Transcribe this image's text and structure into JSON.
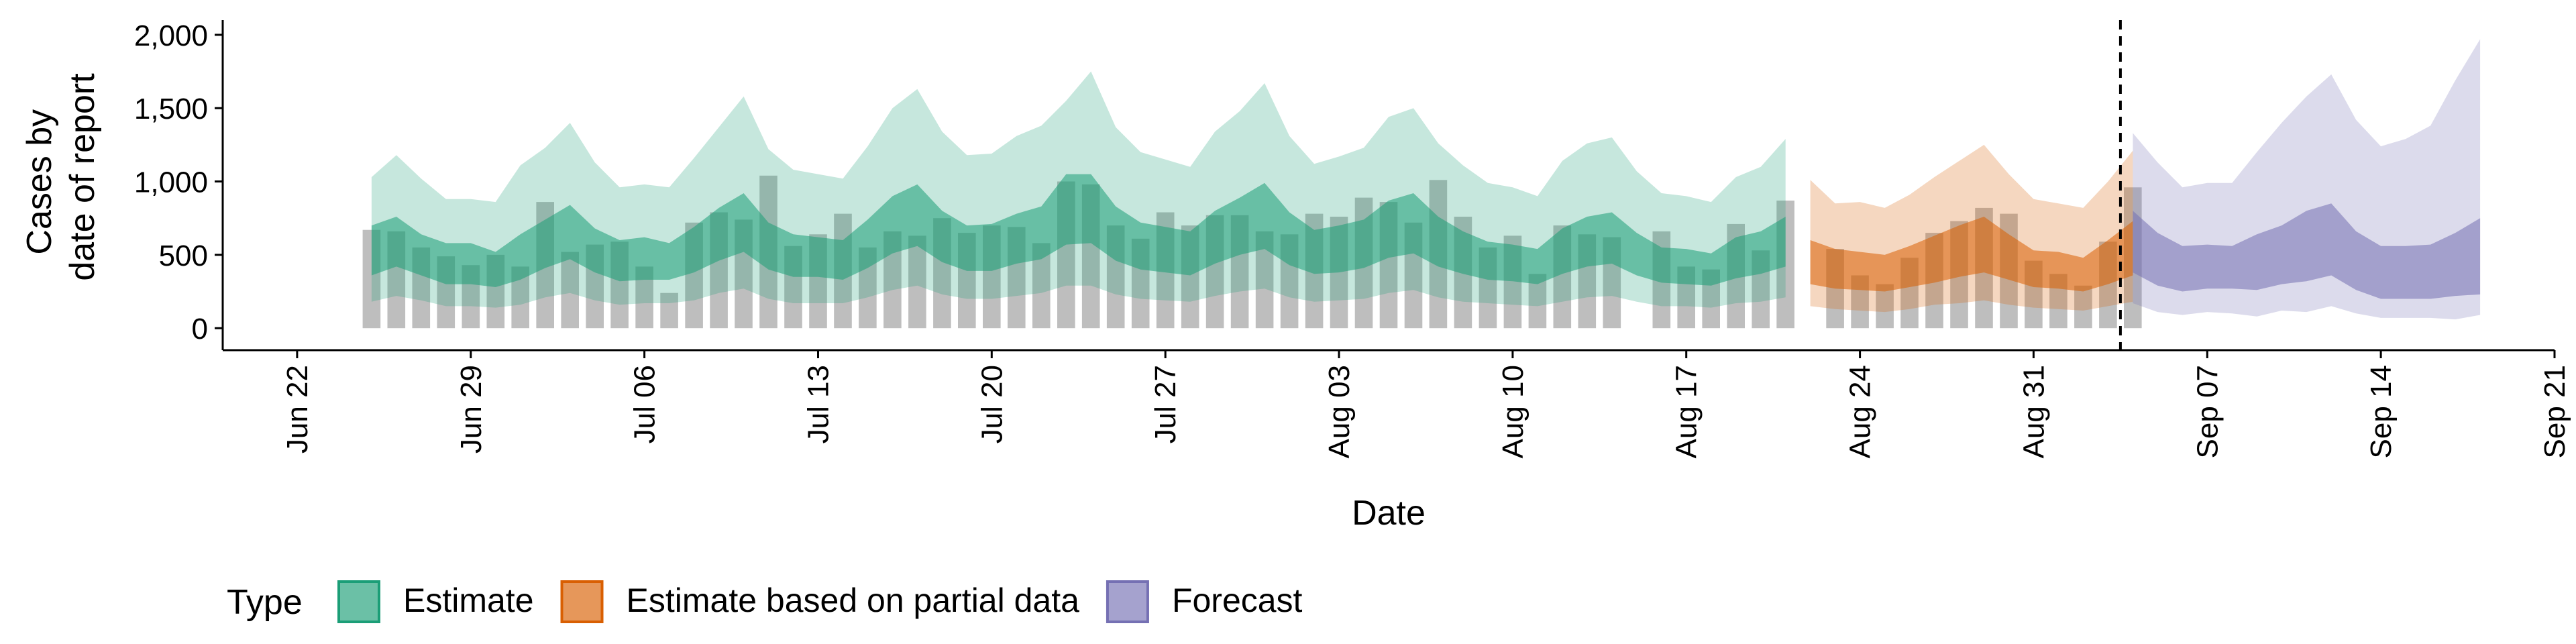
{
  "chart_data": {
    "type": "area",
    "xlabel": "Date",
    "ylabel_lines": [
      "Cases by",
      "date of report"
    ],
    "ylim": [
      -150,
      2100
    ],
    "y_ticks": [
      0,
      500,
      1000,
      1500,
      2000
    ],
    "y_tick_labels": [
      "0",
      "500",
      "1,000",
      "1,500",
      "2,000"
    ],
    "xlim": [
      "2020-06-19",
      "2020-09-21"
    ],
    "x_ticks": [
      "2020-06-22",
      "2020-06-29",
      "2020-07-06",
      "2020-07-13",
      "2020-07-20",
      "2020-07-27",
      "2020-08-03",
      "2020-08-10",
      "2020-08-17",
      "2020-08-24",
      "2020-08-31",
      "2020-09-07",
      "2020-09-14",
      "2020-09-21"
    ],
    "x_tick_labels": [
      "Jun 22",
      "Jun 29",
      "Jul 06",
      "Jul 13",
      "Jul 20",
      "Jul 27",
      "Aug 03",
      "Aug 10",
      "Aug 17",
      "Aug 24",
      "Aug 31",
      "Sep 07",
      "Sep 14",
      "Sep 21"
    ],
    "forecast_date": "2020-09-03",
    "grid": false,
    "legend": {
      "position": "bottom-left",
      "title": "Type",
      "items": [
        {
          "label": "Estimate",
          "color": "#1b9e77"
        },
        {
          "label": "Estimate based on partial data",
          "color": "#d95f02"
        },
        {
          "label": "Forecast",
          "color": "#7570b3"
        }
      ]
    },
    "reported_cases": {
      "start_date": "2020-06-25",
      "color": "#b3b3b3",
      "values": [
        670,
        660,
        550,
        490,
        430,
        500,
        420,
        860,
        520,
        570,
        590,
        420,
        240,
        720,
        790,
        740,
        1040,
        560,
        640,
        780,
        550,
        660,
        630,
        750,
        650,
        700,
        690,
        580,
        1000,
        980,
        700,
        610,
        790,
        700,
        770,
        770,
        660,
        640,
        780,
        760,
        890,
        860,
        720,
        1010,
        760,
        550,
        630,
        370,
        700,
        640,
        620,
        0,
        660,
        420,
        400,
        710,
        530,
        870,
        0,
        540,
        360,
        300,
        480,
        650,
        730,
        820,
        780,
        460,
        370,
        290,
        590,
        960
      ]
    },
    "series": [
      {
        "name": "Estimate",
        "start_date": "2020-06-25",
        "color": "#1b9e77",
        "upper90": [
          1030,
          1180,
          1020,
          880,
          880,
          860,
          1110,
          1230,
          1400,
          1130,
          960,
          980,
          960,
          1160,
          1370,
          1580,
          1220,
          1080,
          1050,
          1020,
          1240,
          1500,
          1630,
          1340,
          1180,
          1190,
          1310,
          1380,
          1550,
          1750,
          1370,
          1200,
          1150,
          1100,
          1340,
          1480,
          1670,
          1310,
          1120,
          1170,
          1230,
          1440,
          1500,
          1260,
          1110,
          990,
          960,
          900,
          1140,
          1260,
          1300,
          1070,
          920,
          900,
          860,
          1030,
          1100,
          1290
        ],
        "upper50": [
          700,
          760,
          640,
          580,
          580,
          520,
          640,
          740,
          840,
          680,
          600,
          620,
          580,
          690,
          820,
          920,
          720,
          640,
          620,
          600,
          740,
          900,
          980,
          800,
          700,
          710,
          780,
          830,
          1050,
          1050,
          830,
          720,
          690,
          660,
          800,
          890,
          990,
          790,
          670,
          700,
          740,
          870,
          920,
          760,
          660,
          590,
          570,
          540,
          680,
          760,
          790,
          650,
          550,
          540,
          510,
          620,
          660,
          760
        ],
        "lower50": [
          360,
          420,
          360,
          300,
          300,
          280,
          330,
          410,
          470,
          380,
          320,
          330,
          330,
          380,
          460,
          520,
          400,
          350,
          350,
          330,
          410,
          510,
          560,
          450,
          390,
          390,
          440,
          470,
          570,
          580,
          460,
          400,
          380,
          360,
          440,
          500,
          540,
          430,
          370,
          380,
          410,
          480,
          510,
          420,
          370,
          330,
          320,
          300,
          370,
          420,
          440,
          360,
          310,
          300,
          290,
          340,
          370,
          420
        ],
        "lower90": [
          180,
          220,
          190,
          150,
          150,
          140,
          160,
          210,
          240,
          190,
          160,
          170,
          170,
          190,
          240,
          270,
          200,
          170,
          170,
          170,
          210,
          260,
          290,
          230,
          200,
          200,
          220,
          240,
          290,
          290,
          230,
          200,
          190,
          180,
          220,
          250,
          270,
          210,
          180,
          190,
          200,
          240,
          260,
          210,
          180,
          170,
          160,
          150,
          180,
          210,
          220,
          180,
          150,
          150,
          140,
          170,
          180,
          210
        ]
      },
      {
        "name": "Estimate based on partial data",
        "start_date": "2020-08-22",
        "color": "#d95f02",
        "upper90": [
          1010,
          850,
          860,
          820,
          910,
          1030,
          1140,
          1250,
          1050,
          880,
          850,
          820,
          1000,
          1210
        ],
        "upper50": [
          600,
          540,
          520,
          500,
          560,
          630,
          700,
          760,
          640,
          530,
          520,
          480,
          600,
          730
        ],
        "lower50": [
          300,
          270,
          260,
          250,
          280,
          310,
          350,
          380,
          330,
          280,
          270,
          250,
          300,
          360
        ],
        "lower90": [
          150,
          130,
          120,
          110,
          130,
          160,
          170,
          190,
          160,
          140,
          130,
          120,
          150,
          180
        ]
      },
      {
        "name": "Forecast",
        "start_date": "2020-09-04",
        "color": "#7570b3",
        "upper90": [
          1330,
          1130,
          960,
          990,
          990,
          1200,
          1400,
          1580,
          1730,
          1420,
          1240,
          1290,
          1380,
          1690,
          1970
        ],
        "upper50": [
          800,
          650,
          560,
          570,
          560,
          640,
          700,
          800,
          850,
          660,
          560,
          560,
          570,
          650,
          750
        ],
        "lower50": [
          380,
          290,
          250,
          270,
          270,
          260,
          300,
          320,
          360,
          260,
          200,
          200,
          200,
          220,
          230
        ],
        "lower90": [
          170,
          110,
          90,
          110,
          100,
          80,
          120,
          110,
          150,
          100,
          70,
          70,
          70,
          60,
          90
        ]
      }
    ]
  }
}
